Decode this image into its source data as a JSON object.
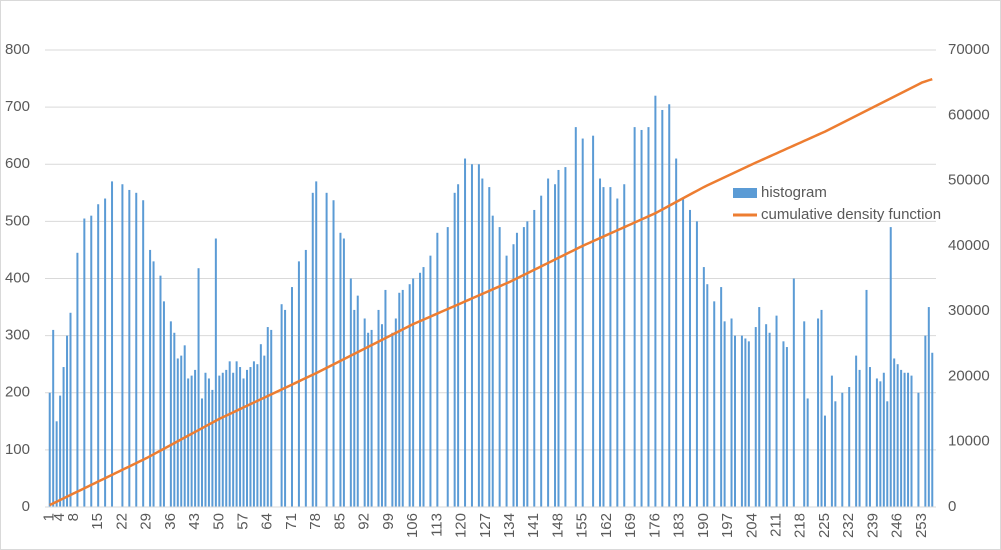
{
  "chart_data": {
    "type": "bar+line",
    "categories": [
      1,
      null,
      null,
      4,
      null,
      null,
      null,
      8,
      null,
      null,
      null,
      null,
      null,
      null,
      15,
      null,
      null,
      null,
      null,
      null,
      null,
      22,
      null,
      null,
      null,
      null,
      null,
      null,
      29,
      null,
      null,
      null,
      null,
      null,
      null,
      36,
      null,
      null,
      null,
      null,
      null,
      null,
      43,
      null,
      null,
      null,
      null,
      null,
      null,
      50,
      null,
      null,
      null,
      null,
      null,
      null,
      57,
      null,
      null,
      null,
      null,
      null,
      null,
      64,
      null,
      null,
      null,
      null,
      null,
      null,
      71,
      null,
      null,
      null,
      null,
      null,
      null,
      78,
      null,
      null,
      null,
      null,
      null,
      null,
      85,
      null,
      null,
      null,
      null,
      null,
      null,
      92,
      null,
      null,
      null,
      null,
      null,
      null,
      99,
      null,
      null,
      null,
      null,
      null,
      null,
      106,
      null,
      null,
      null,
      null,
      null,
      null,
      113,
      null,
      null,
      null,
      null,
      null,
      null,
      120,
      null,
      null,
      null,
      null,
      null,
      null,
      127,
      null,
      null,
      null,
      null,
      null,
      null,
      134,
      null,
      null,
      null,
      null,
      null,
      null,
      141,
      null,
      null,
      null,
      null,
      null,
      null,
      148,
      null,
      null,
      null,
      null,
      null,
      null,
      155,
      null,
      null,
      null,
      null,
      null,
      null,
      162,
      null,
      null,
      null,
      null,
      null,
      null,
      169,
      null,
      null,
      null,
      null,
      null,
      null,
      176,
      null,
      null,
      null,
      null,
      null,
      null,
      183,
      null,
      null,
      null,
      null,
      null,
      null,
      190,
      null,
      null,
      null,
      null,
      null,
      null,
      197,
      null,
      null,
      null,
      null,
      null,
      null,
      204,
      null,
      null,
      null,
      null,
      null,
      null,
      211,
      null,
      null,
      null,
      null,
      null,
      null,
      218,
      null,
      null,
      null,
      null,
      null,
      null,
      225,
      null,
      null,
      null,
      null,
      null,
      null,
      232,
      null,
      null,
      null,
      null,
      null,
      null,
      239,
      null,
      null,
      null,
      null,
      null,
      null,
      246,
      null,
      null,
      null,
      null,
      null,
      null,
      253,
      null,
      null,
      null
    ],
    "series": [
      {
        "name": "histogram",
        "type": "bar",
        "color": "#5b9bd5",
        "values": [
          200,
          310,
          150,
          195,
          245,
          300,
          340,
          0,
          445,
          0,
          505,
          0,
          510,
          0,
          530,
          0,
          540,
          0,
          570,
          0,
          0,
          565,
          0,
          555,
          0,
          550,
          0,
          537,
          0,
          450,
          430,
          0,
          405,
          360,
          0,
          325,
          305,
          260,
          265,
          283,
          225,
          230,
          240,
          418,
          190,
          235,
          225,
          205,
          470,
          230,
          235,
          240,
          255,
          235,
          255,
          245,
          225,
          240,
          245,
          255,
          250,
          285,
          265,
          315,
          310,
          0,
          0,
          355,
          345,
          0,
          385,
          0,
          430,
          0,
          450,
          0,
          550,
          570,
          0,
          0,
          550,
          0,
          537,
          0,
          480,
          470,
          0,
          400,
          345,
          370,
          0,
          330,
          305,
          310,
          0,
          345,
          320,
          380,
          0,
          305,
          330,
          375,
          380,
          0,
          390,
          400,
          0,
          410,
          420,
          0,
          440,
          0,
          480,
          0,
          0,
          490,
          0,
          550,
          565,
          0,
          610,
          0,
          600,
          0,
          600,
          575,
          0,
          560,
          510,
          0,
          490,
          0,
          440,
          0,
          460,
          480,
          0,
          490,
          500,
          0,
          520,
          0,
          545,
          0,
          575,
          0,
          565,
          590,
          0,
          595,
          0,
          0,
          665,
          0,
          645,
          0,
          0,
          650,
          0,
          575,
          560,
          0,
          560,
          0,
          540,
          0,
          565,
          0,
          0,
          665,
          0,
          660,
          0,
          665,
          0,
          720,
          0,
          695,
          0,
          705,
          0,
          610,
          0,
          540,
          0,
          520,
          0,
          500,
          0,
          420,
          390,
          0,
          360,
          0,
          385,
          325,
          0,
          330,
          300,
          0,
          300,
          295,
          290,
          0,
          315,
          350,
          0,
          320,
          305,
          0,
          335,
          0,
          290,
          280,
          0,
          400,
          0,
          0,
          325,
          190,
          0,
          0,
          330,
          345,
          160,
          0,
          230,
          185,
          0,
          200,
          0,
          210,
          0,
          265,
          240,
          0,
          380,
          245,
          0,
          225,
          220,
          235,
          185,
          490,
          260,
          250,
          240,
          235,
          235,
          230,
          0,
          200,
          0,
          300,
          350,
          270
        ]
      },
      {
        "name": "cumulative density function",
        "type": "line",
        "axis": "y2",
        "color": "#ed7d31",
        "values": [
          300,
          557,
          814,
          1071,
          1328,
          1585,
          1842,
          2099,
          2356,
          2613,
          2870,
          3127,
          3384,
          3641,
          3898,
          4155,
          4412,
          4669,
          4926,
          5183,
          5440,
          5697,
          5954,
          6211,
          6468,
          6725,
          6982,
          7239,
          7496,
          7782,
          8068,
          8354,
          8640,
          8926,
          9212,
          9498,
          9784,
          10070,
          10356,
          10642,
          10928,
          11214,
          11500,
          11786,
          12072,
          12358,
          12644,
          12930,
          13216,
          13502,
          13752,
          14002,
          14252,
          14502,
          14752,
          15002,
          15252,
          15502,
          15752,
          16002,
          16252,
          16502,
          16752,
          17002,
          17252,
          17502,
          17752,
          18002,
          18252,
          18502,
          18752,
          19002,
          19252,
          19502,
          19752,
          20002,
          20252,
          20502,
          20770,
          21038,
          21306,
          21574,
          21842,
          22110,
          22378,
          22646,
          22914,
          23182,
          23450,
          23718,
          23986,
          24254,
          24522,
          24790,
          25058,
          25326,
          25594,
          25862,
          26130,
          26398,
          26666,
          26934,
          27202,
          27470,
          27738,
          28006,
          28238,
          28470,
          28702,
          28934,
          29166,
          29398,
          29630,
          29862,
          30094,
          30326,
          30558,
          30790,
          31022,
          31254,
          31486,
          31718,
          31950,
          32182,
          32414,
          32646,
          32878,
          33110,
          33342,
          33574,
          33806,
          34038,
          34270,
          34502,
          34764,
          35026,
          35288,
          35550,
          35812,
          36074,
          36336,
          36598,
          36860,
          37122,
          37384,
          37646,
          37908,
          38170,
          38432,
          38694,
          38956,
          39218,
          39480,
          39742,
          40004,
          40242,
          40480,
          40718,
          40956,
          41194,
          41432,
          41670,
          41908,
          42146,
          42384,
          42622,
          42860,
          43098,
          43336,
          43574,
          43812,
          44050,
          44288,
          44526,
          44764,
          45002,
          45288,
          45574,
          45860,
          46146,
          46432,
          46718,
          47004,
          47290,
          47576,
          47862,
          48148,
          48434,
          48720,
          49006,
          49256,
          49506,
          49756,
          50006,
          50256,
          50506,
          50756,
          51006,
          51256,
          51506,
          51756,
          52006,
          52256,
          52506,
          52744,
          52982,
          53220,
          53458,
          53696,
          53934,
          54172,
          54410,
          54648,
          54886,
          55124,
          55362,
          55600,
          55838,
          56076,
          56314,
          56552,
          56790,
          57028,
          57266,
          57504,
          57772,
          58040,
          58308,
          58576,
          58844,
          59112,
          59380,
          59648,
          59916,
          60184,
          60452,
          60720,
          60988,
          61256,
          61524,
          61792,
          62060,
          62328,
          62596,
          62864,
          63132,
          63400,
          63668,
          63936,
          64204,
          64472,
          64740,
          65008,
          65187,
          65366,
          65536
        ]
      }
    ],
    "ylim": [
      0,
      800
    ],
    "yticks": [
      0,
      100,
      200,
      300,
      400,
      500,
      600,
      700,
      800
    ],
    "y2lim": [
      0,
      70000
    ],
    "y2ticks": [
      0,
      10000,
      20000,
      30000,
      40000,
      50000,
      60000,
      70000
    ],
    "grid": true,
    "legend": "right"
  }
}
